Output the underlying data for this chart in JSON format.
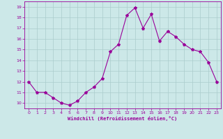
{
  "x": [
    0,
    1,
    2,
    3,
    4,
    5,
    6,
    7,
    8,
    9,
    10,
    11,
    12,
    13,
    14,
    15,
    16,
    17,
    18,
    19,
    20,
    21,
    22,
    23
  ],
  "y": [
    12,
    11,
    11,
    10.5,
    10,
    9.8,
    10.2,
    11,
    11.5,
    12.3,
    14.8,
    15.5,
    18.2,
    18.9,
    17,
    18.3,
    15.8,
    16.7,
    16.2,
    15.5,
    15,
    14.8,
    13.8,
    12
  ],
  "line_color": "#990099",
  "marker": "*",
  "marker_size": 3,
  "xlabel": "Windchill (Refroidissement éolien,°C)",
  "ylim": [
    9.5,
    19.5
  ],
  "xlim": [
    -0.5,
    23.5
  ],
  "yticks": [
    10,
    11,
    12,
    13,
    14,
    15,
    16,
    17,
    18,
    19
  ],
  "xticks": [
    0,
    1,
    2,
    3,
    4,
    5,
    6,
    7,
    8,
    9,
    10,
    11,
    12,
    13,
    14,
    15,
    16,
    17,
    18,
    19,
    20,
    21,
    22,
    23
  ],
  "bg_color": "#cce8e8",
  "grid_color": "#aacccc",
  "tick_color": "#990099",
  "label_color": "#990099"
}
